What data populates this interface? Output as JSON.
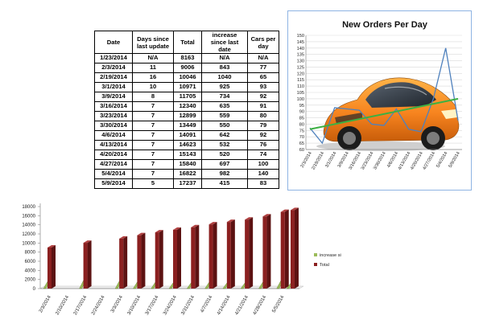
{
  "table": {
    "headers": [
      "Date",
      "Days since last update",
      "Total",
      "increase since last date",
      "Cars per day"
    ],
    "rows": [
      [
        "1/23/2014",
        "N/A",
        "8163",
        "N/A",
        "N/A"
      ],
      [
        "2/3/2014",
        "11",
        "9006",
        "843",
        "77"
      ],
      [
        "2/19/2014",
        "16",
        "10046",
        "1040",
        "65"
      ],
      [
        "3/1/2014",
        "10",
        "10971",
        "925",
        "93"
      ],
      [
        "3/9/2014",
        "8",
        "11705",
        "734",
        "92"
      ],
      [
        "3/16/2014",
        "7",
        "12340",
        "635",
        "91"
      ],
      [
        "3/23/2014",
        "7",
        "12899",
        "559",
        "80"
      ],
      [
        "3/30/2014",
        "7",
        "13449",
        "550",
        "79"
      ],
      [
        "4/6/2014",
        "7",
        "14091",
        "642",
        "92"
      ],
      [
        "4/13/2014",
        "7",
        "14623",
        "532",
        "76"
      ],
      [
        "4/20/2014",
        "7",
        "15143",
        "520",
        "74"
      ],
      [
        "4/27/2014",
        "7",
        "15840",
        "697",
        "100"
      ],
      [
        "5/4/2014",
        "7",
        "16822",
        "982",
        "140"
      ],
      [
        "5/9/2014",
        "5",
        "17237",
        "415",
        "83"
      ]
    ]
  },
  "chart_data": [
    {
      "type": "line",
      "title": "New Orders Per Day",
      "categories": [
        "2/3/2014",
        "2/19/2014",
        "3/1/2014",
        "3/9/2014",
        "3/16/2014",
        "3/23/2014",
        "3/30/2014",
        "4/6/2014",
        "4/13/2014",
        "4/20/2014",
        "4/27/2014",
        "5/4/2014",
        "5/9/2014"
      ],
      "series": [
        {
          "values": [
            77,
            65,
            93,
            92,
            91,
            80,
            79,
            92,
            76,
            74,
            100,
            140,
            83
          ],
          "color": "#4f81bd"
        }
      ],
      "trendline": {
        "from": 76,
        "to": 100,
        "color": "#3cb043"
      },
      "yticks": [
        60,
        65,
        70,
        75,
        80,
        85,
        90,
        95,
        100,
        105,
        110,
        115,
        120,
        125,
        130,
        135,
        140,
        145,
        150
      ],
      "ylim": [
        60,
        150
      ],
      "grid": true,
      "background": "car photo"
    },
    {
      "type": "bar",
      "categories": [
        "2/3/2014",
        "2/10/2014",
        "2/17/2014",
        "2/24/2014",
        "3/3/2014",
        "3/10/2014",
        "3/17/2014",
        "3/24/2014",
        "3/31/2014",
        "4/7/2014",
        "4/14/2014",
        "4/21/2014",
        "4/28/2014",
        "5/5/2014"
      ],
      "series": [
        {
          "name": "increase since last date N/A",
          "values": [
            843,
            null,
            1040,
            null,
            925,
            734,
            635,
            559,
            550,
            642,
            532,
            520,
            697,
            982
          ],
          "color": "#9bbb59"
        },
        {
          "name": "Total",
          "values": [
            9006,
            null,
            10046,
            null,
            10971,
            11705,
            12340,
            12899,
            13449,
            14091,
            14623,
            15143,
            15840,
            16822
          ],
          "color": "#8b2020"
        }
      ],
      "extra_bar": {
        "category": "5/9/2014",
        "total": 17237,
        "increase": 415
      },
      "yticks": [
        0,
        2000,
        4000,
        6000,
        8000,
        10000,
        12000,
        14000,
        16000,
        18000
      ],
      "ylim": [
        0,
        18000
      ],
      "legend": "right",
      "grid": false
    }
  ]
}
